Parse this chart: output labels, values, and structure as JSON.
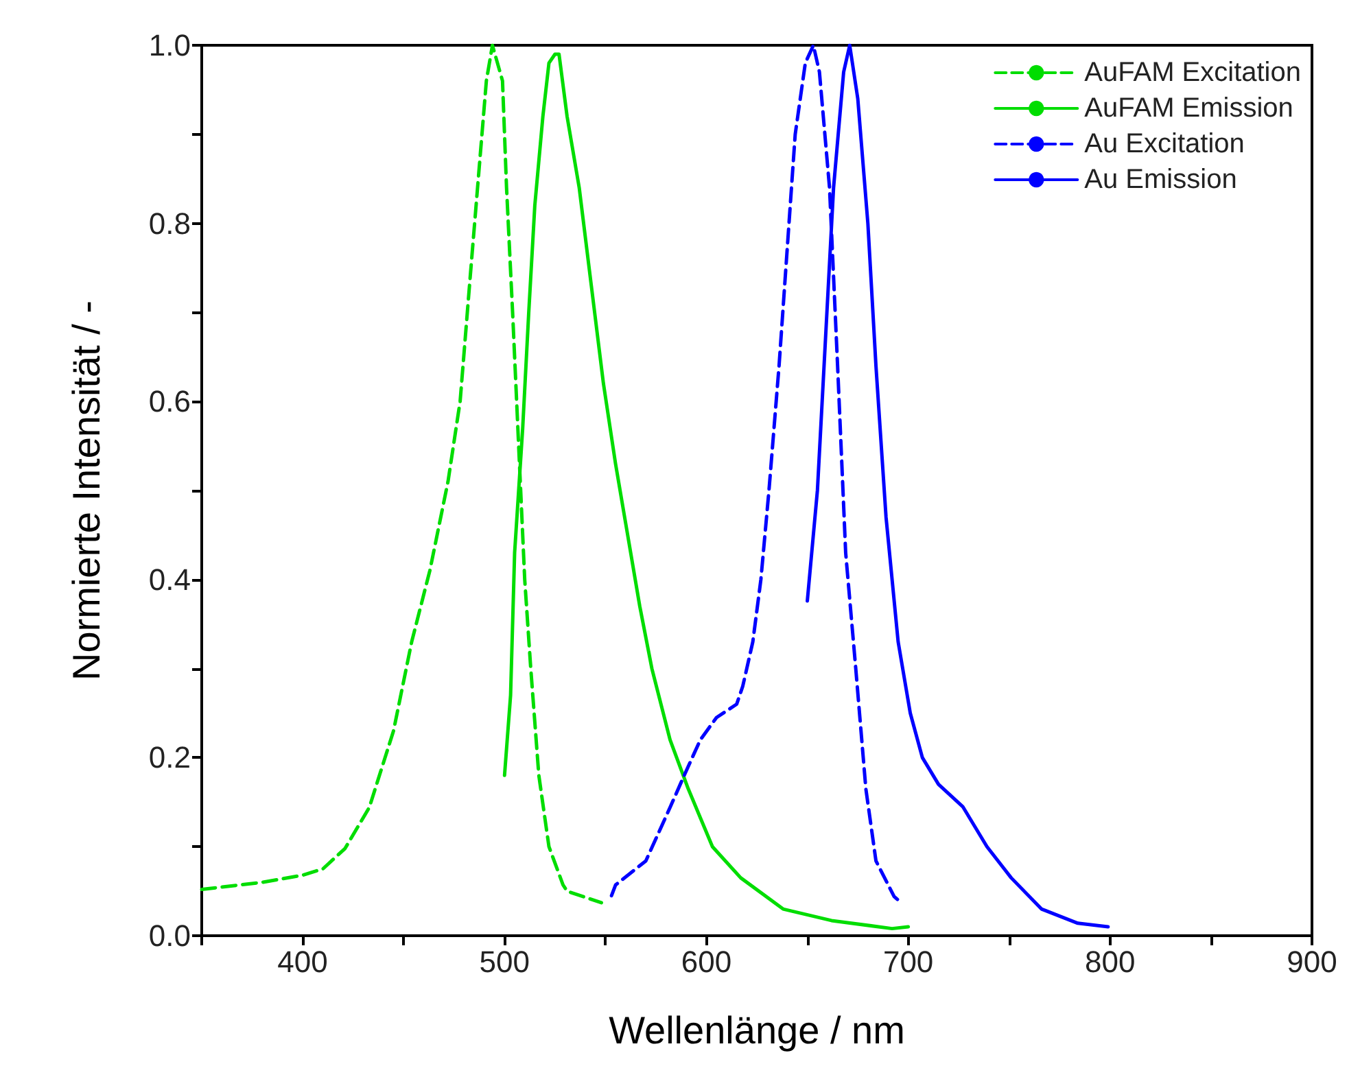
{
  "chart_data": {
    "type": "line",
    "xlabel": "Wellenlänge / nm",
    "ylabel": "Normierte Intensität / -",
    "xlim": [
      350,
      900
    ],
    "ylim": [
      0,
      1
    ],
    "xticks": [
      {
        "value": 350,
        "label": null
      },
      400,
      {
        "value": 450,
        "label": null
      },
      500,
      {
        "value": 550,
        "label": null
      },
      600,
      {
        "value": 650,
        "label": null
      },
      700,
      {
        "value": 750,
        "label": null
      },
      800,
      {
        "value": 850,
        "label": null
      },
      900
    ],
    "yticks": [
      {
        "value": 0,
        "label": "0.0"
      },
      {
        "value": 0.1,
        "label": null
      },
      {
        "value": 0.2,
        "label": "0.2"
      },
      {
        "value": 0.3,
        "label": null
      },
      {
        "value": 0.4,
        "label": "0.4"
      },
      {
        "value": 0.5,
        "label": null
      },
      {
        "value": 0.6,
        "label": "0.6"
      },
      {
        "value": 0.7,
        "label": null
      },
      {
        "value": 0.8,
        "label": "0.8"
      },
      {
        "value": 0.9,
        "label": null
      },
      {
        "value": 1,
        "label": "1.0"
      }
    ],
    "grid": false,
    "legend": "top right",
    "marker": "none",
    "series": [
      {
        "name": "AuFAM Excitation",
        "color": "#00dd00",
        "line_style": "dashed",
        "x": [
          350,
          380,
          400,
          410,
          421,
          433,
          445,
          454,
          463,
          472,
          478,
          483,
          487,
          491,
          494,
          499,
          501,
          504,
          507,
          510,
          513,
          517,
          522,
          529,
          531,
          548
        ],
        "values": [
          0.052,
          0.06,
          0.068,
          0.075,
          0.098,
          0.144,
          0.23,
          0.33,
          0.41,
          0.51,
          0.6,
          0.74,
          0.85,
          0.96,
          1.0,
          0.96,
          0.84,
          0.7,
          0.55,
          0.4,
          0.3,
          0.18,
          0.1,
          0.057,
          0.05,
          0.037
        ]
      },
      {
        "name": "AuFAM Emission",
        "color": "#00dd00",
        "line_style": "solid",
        "x": [
          500,
          503,
          505,
          509,
          512,
          515,
          519,
          522,
          525,
          527,
          531,
          537,
          543,
          549,
          555,
          561,
          567,
          573,
          582,
          591,
          603,
          617,
          638,
          662,
          692,
          700
        ],
        "values": [
          0.18,
          0.27,
          0.43,
          0.57,
          0.7,
          0.82,
          0.92,
          0.98,
          0.99,
          0.99,
          0.92,
          0.84,
          0.73,
          0.62,
          0.53,
          0.45,
          0.37,
          0.3,
          0.22,
          0.165,
          0.1,
          0.065,
          0.03,
          0.017,
          0.008,
          0.01
        ]
      },
      {
        "name": "Au Excitation",
        "color": "#0000ff",
        "line_style": "dashed",
        "x": [
          553,
          555,
          570,
          582,
          589,
          597,
          605,
          615,
          618,
          623,
          627,
          631,
          636,
          640,
          644,
          649,
          653,
          656,
          661,
          665,
          669,
          674,
          679,
          684,
          693,
          695
        ],
        "values": [
          0.045,
          0.057,
          0.084,
          0.144,
          0.18,
          0.22,
          0.245,
          0.26,
          0.28,
          0.33,
          0.4,
          0.5,
          0.64,
          0.77,
          0.9,
          0.98,
          1.0,
          0.97,
          0.84,
          0.64,
          0.43,
          0.3,
          0.165,
          0.084,
          0.044,
          0.04
        ]
      },
      {
        "name": "Au Emission",
        "color": "#0000ff",
        "line_style": "solid",
        "x": [
          650,
          655,
          659,
          663,
          668,
          671,
          675,
          680,
          684,
          689,
          695,
          701,
          707,
          715,
          727,
          739,
          751,
          766,
          784,
          799
        ],
        "values": [
          0.376,
          0.5,
          0.67,
          0.84,
          0.97,
          1.0,
          0.94,
          0.8,
          0.64,
          0.47,
          0.33,
          0.25,
          0.2,
          0.17,
          0.145,
          0.1,
          0.065,
          0.03,
          0.014,
          0.01
        ]
      }
    ]
  }
}
